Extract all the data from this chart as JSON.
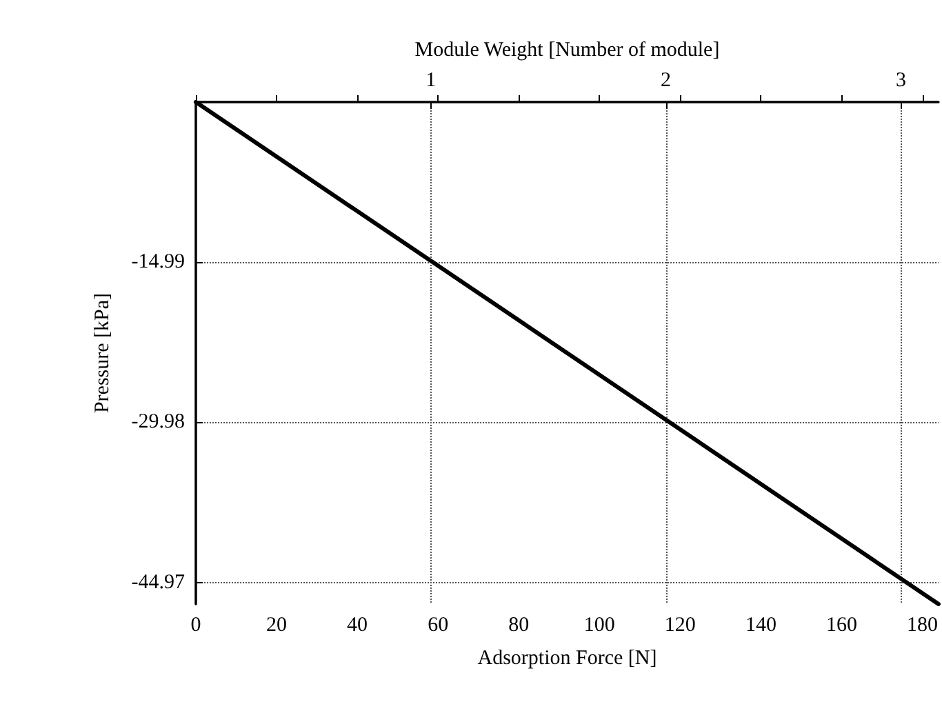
{
  "chart_data": {
    "type": "line",
    "xlabel": "Adsorption Force [N]",
    "x2label": "Module Weight [Number of module]",
    "ylabel": "Pressure [kPa]",
    "x": [
      0,
      184
    ],
    "series": [
      {
        "color": "#000000",
        "values": [
          0,
          -47
        ]
      }
    ],
    "xlim": [
      0,
      184
    ],
    "xticks": [
      0,
      20,
      40,
      60,
      80,
      100,
      120,
      140,
      160,
      180
    ],
    "x2lim": [
      0,
      3.16
    ],
    "x2ticks": [
      1,
      2,
      3
    ],
    "ylim": [
      -47,
      0
    ],
    "yticks": [
      -14.99,
      -29.98,
      -44.97
    ],
    "grid": true,
    "marker": "none",
    "line_style": "solid"
  }
}
